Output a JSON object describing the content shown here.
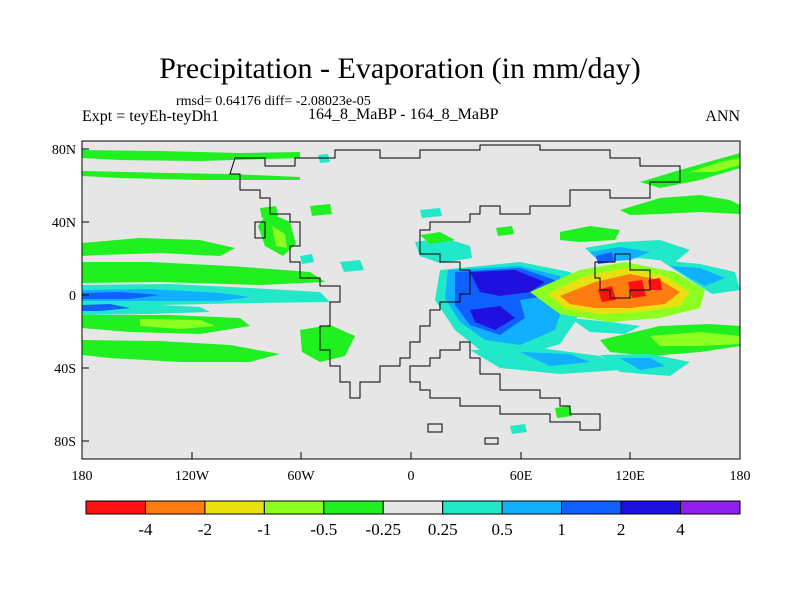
{
  "title": "Precipitation - Evaporation (in mm/day)",
  "stats": "rmsd= 0.64176 diff= -2.08023e-05",
  "experiment": "Expt = teyEh-teyDh1",
  "period": "164_8_MaBP - 164_8_MaBP",
  "season": "ANN",
  "map": {
    "lon_ticks": [
      "180",
      "120W",
      "60W",
      "0",
      "60E",
      "120E",
      "180"
    ],
    "lat_ticks": [
      "80N",
      "40N",
      "0",
      "40S",
      "80S"
    ],
    "background_color": "#e6e6e6"
  },
  "colorbar": {
    "labels": [
      "-4",
      "-2",
      "-1",
      "-0.5",
      "-0.25",
      "0.25",
      "0.5",
      "1",
      "2",
      "4"
    ],
    "colors": [
      "#ff1010",
      "#ff7d10",
      "#e8e010",
      "#8cff20",
      "#20f020",
      "#e6e6e6",
      "#20e8c8",
      "#10b0ff",
      "#1060ff",
      "#2010e0",
      "#9020f0"
    ]
  }
}
